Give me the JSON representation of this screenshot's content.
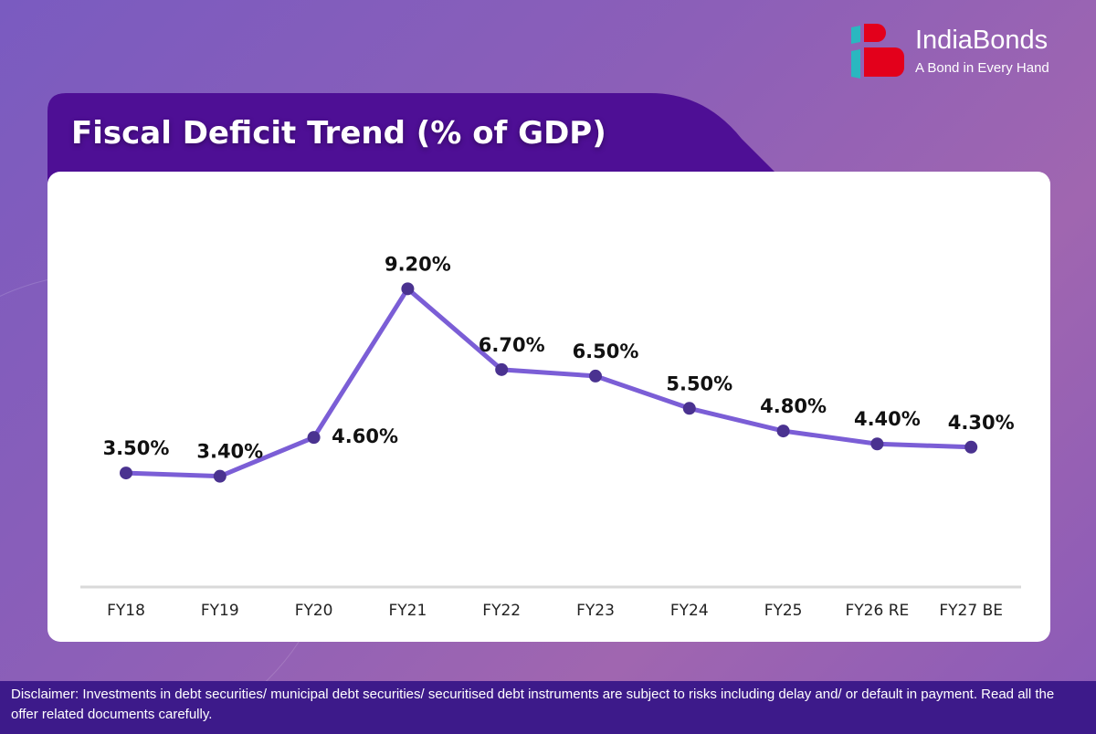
{
  "brand": {
    "name": "IndiaBonds",
    "tagline": "A Bond in Every Hand"
  },
  "disclaimer": "Disclaimer: Investments in debt securities/ municipal debt securities/ securitised debt instruments are subject to risks including delay and/ or default in payment. Read all the offer related documents carefully.",
  "colors": {
    "line": "#7b5ed6",
    "point": "#4a3290",
    "title_bar": "#4e0f95",
    "disclaimer_bar": "#3d1a8a",
    "logo_red": "#e3001b",
    "logo_teal": "#2ab7c0"
  },
  "chart_data": {
    "type": "line",
    "title": "Fiscal Deficit Trend (% of GDP)",
    "categories": [
      "FY18",
      "FY19",
      "FY20",
      "FY21",
      "FY22",
      "FY23",
      "FY24",
      "FY25",
      "FY26 RE",
      "FY27 BE"
    ],
    "values": [
      3.5,
      3.4,
      4.6,
      9.2,
      6.7,
      6.5,
      5.5,
      4.8,
      4.4,
      4.3
    ],
    "data_labels": [
      "3.50%",
      "3.40%",
      "4.60%",
      "9.20%",
      "6.70%",
      "6.50%",
      "5.50%",
      "4.80%",
      "4.40%",
      "4.30%"
    ],
    "xlabel": "",
    "ylabel": "",
    "ylim": [
      0,
      10.5
    ],
    "grid": false,
    "legend": "none"
  }
}
